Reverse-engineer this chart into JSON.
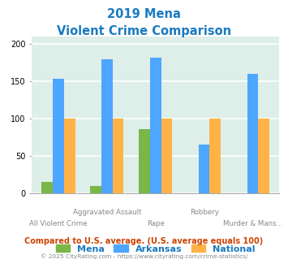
{
  "title_line1": "2019 Mena",
  "title_line2": "Violent Crime Comparison",
  "categories": [
    "All Violent Crime",
    "Aggravated Assault",
    "Rape",
    "Robbery",
    "Murder & Mans..."
  ],
  "mena": [
    15,
    9,
    85,
    0,
    0
  ],
  "arkansas": [
    153,
    179,
    181,
    65,
    160
  ],
  "national": [
    100,
    100,
    100,
    100,
    100
  ],
  "mena_color": "#7ab648",
  "arkansas_color": "#4da6ff",
  "national_color": "#ffb347",
  "title_color": "#1a7abf",
  "bg_color": "#deeee8",
  "ylim": [
    0,
    210
  ],
  "yticks": [
    0,
    50,
    100,
    150,
    200
  ],
  "xlabel_color": "#888888",
  "legend_label_mena": "Mena",
  "legend_label_arkansas": "Arkansas",
  "legend_label_national": "National",
  "footnote1": "Compared to U.S. average. (U.S. average equals 100)",
  "footnote2": "© 2025 CityRating.com - https://www.cityrating.com/crime-statistics/",
  "footnote1_color": "#cc4400",
  "footnote2_color": "#888888"
}
